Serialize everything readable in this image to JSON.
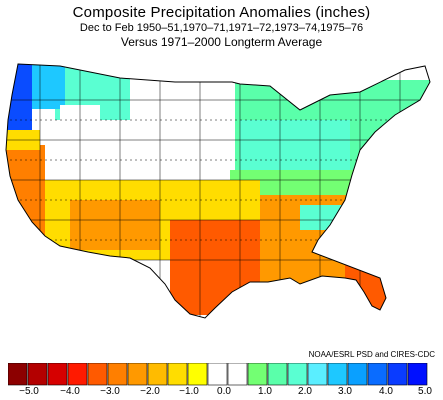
{
  "header": {
    "title": "Composite Precipitation Anomalies (inches)",
    "subtitle": "Dec to Feb  1950–51,1970–71,1971–72,1973–74,1975–76",
    "baseline": "Versus 1971–2000 Longterm Average"
  },
  "credit": "NOAA/ESRL PSD and CIRES-CDC",
  "colorbar": {
    "colors": [
      "#8c0000",
      "#b30000",
      "#d60000",
      "#ff1a00",
      "#ff5a00",
      "#ff7f00",
      "#ff9900",
      "#ffbb00",
      "#ffdd00",
      "#ffff00",
      "#ffffff",
      "#ffffff",
      "#73ff73",
      "#5affaa",
      "#5affd2",
      "#5aeeff",
      "#1ec8ff",
      "#0aa0ff",
      "#0a6cff",
      "#0a3cff",
      "#0010ff"
    ],
    "tick_labels": [
      "−5.0",
      "−4.0",
      "−3.0",
      "−2.0",
      "−1.0",
      "0.0",
      "1.0",
      "2.0",
      "3.0",
      "4.0",
      "5.0"
    ]
  },
  "map_regions": [
    {
      "name": "pacific-northwest-coast",
      "color": "#0a4cff"
    },
    {
      "name": "washington-cascades",
      "color": "#1ec8ff"
    },
    {
      "name": "idaho-montana-north",
      "color": "#5affd2"
    },
    {
      "name": "great-lakes-northeast",
      "color": "#5affaa"
    },
    {
      "name": "ohio-valley",
      "color": "#5affd2"
    },
    {
      "name": "mid-atlantic",
      "color": "#73ff73"
    },
    {
      "name": "california",
      "color": "#ff7f00"
    },
    {
      "name": "southwest",
      "color": "#ffbb00"
    },
    {
      "name": "texas-gulf",
      "color": "#ff5a00"
    },
    {
      "name": "southeast",
      "color": "#ff9900"
    },
    {
      "name": "florida",
      "color": "#ff5a00"
    }
  ]
}
